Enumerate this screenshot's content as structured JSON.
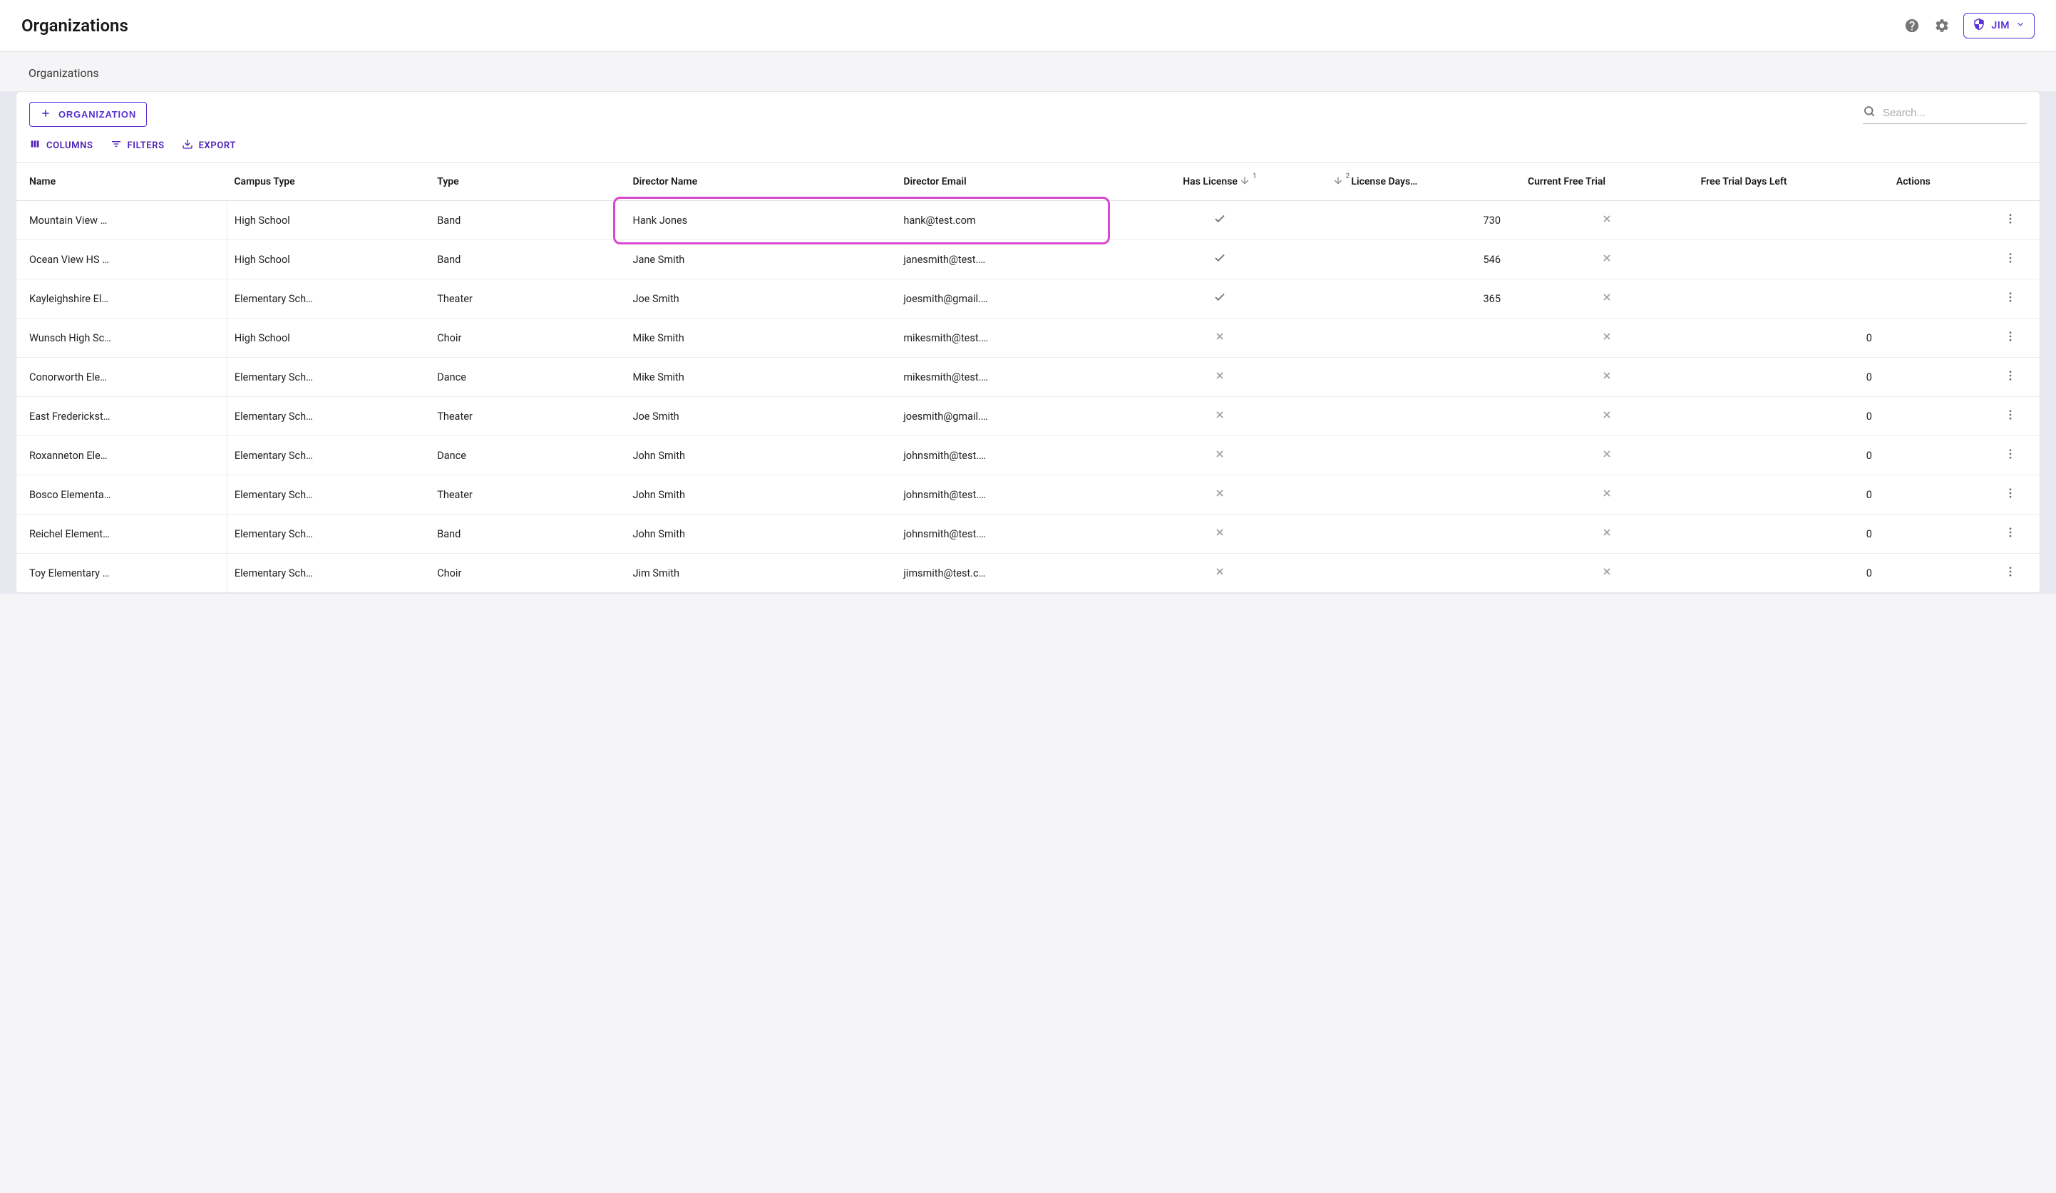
{
  "header": {
    "title": "Organizations",
    "user_label": "JIM"
  },
  "breadcrumb": {
    "text": "Organizations"
  },
  "toolbar": {
    "add_button_label": "ORGANIZATION",
    "columns_label": "COLUMNS",
    "filters_label": "FILTERS",
    "export_label": "EXPORT"
  },
  "search": {
    "placeholder": "Search..."
  },
  "table": {
    "columns": {
      "name": "Name",
      "campus_type": "Campus Type",
      "type": "Type",
      "director_name": "Director Name",
      "director_email": "Director Email",
      "has_license": "Has License",
      "license_days": "License Days…",
      "current_trial": "Current Free Trial",
      "trial_days_left": "Free Trial Days Left",
      "actions": "Actions"
    },
    "sort": {
      "has_license_index": "1",
      "license_days_index": "2"
    },
    "rows": [
      {
        "name": "Mountain View …",
        "campus_type": "High School",
        "type": "Band",
        "director_name": "Hank Jones",
        "director_email": "hank@test.com",
        "has_license": true,
        "license_days": "730",
        "current_trial": false,
        "trial_days_left": ""
      },
      {
        "name": "Ocean View HS …",
        "campus_type": "High School",
        "type": "Band",
        "director_name": "Jane Smith",
        "director_email": "janesmith@test.…",
        "has_license": true,
        "license_days": "546",
        "current_trial": false,
        "trial_days_left": ""
      },
      {
        "name": "Kayleighshire El…",
        "campus_type": "Elementary Sch…",
        "type": "Theater",
        "director_name": "Joe Smith",
        "director_email": "joesmith@gmail.…",
        "has_license": true,
        "license_days": "365",
        "current_trial": false,
        "trial_days_left": ""
      },
      {
        "name": "Wunsch High Sc…",
        "campus_type": "High School",
        "type": "Choir",
        "director_name": "Mike Smith",
        "director_email": "mikesmith@test.…",
        "has_license": false,
        "license_days": "",
        "current_trial": false,
        "trial_days_left": "0"
      },
      {
        "name": "Conorworth Ele…",
        "campus_type": "Elementary Sch…",
        "type": "Dance",
        "director_name": "Mike Smith",
        "director_email": "mikesmith@test.…",
        "has_license": false,
        "license_days": "",
        "current_trial": false,
        "trial_days_left": "0"
      },
      {
        "name": "East Frederickst…",
        "campus_type": "Elementary Sch…",
        "type": "Theater",
        "director_name": "Joe Smith",
        "director_email": "joesmith@gmail.…",
        "has_license": false,
        "license_days": "",
        "current_trial": false,
        "trial_days_left": "0"
      },
      {
        "name": "Roxanneton Ele…",
        "campus_type": "Elementary Sch…",
        "type": "Dance",
        "director_name": "John Smith",
        "director_email": "johnsmith@test.…",
        "has_license": false,
        "license_days": "",
        "current_trial": false,
        "trial_days_left": "0"
      },
      {
        "name": "Bosco Elementa…",
        "campus_type": "Elementary Sch…",
        "type": "Theater",
        "director_name": "John Smith",
        "director_email": "johnsmith@test.…",
        "has_license": false,
        "license_days": "",
        "current_trial": false,
        "trial_days_left": "0"
      },
      {
        "name": "Reichel Element…",
        "campus_type": "Elementary Sch…",
        "type": "Band",
        "director_name": "John Smith",
        "director_email": "johnsmith@test.…",
        "has_license": false,
        "license_days": "",
        "current_trial": false,
        "trial_days_left": "0"
      },
      {
        "name": "Toy Elementary …",
        "campus_type": "Elementary Sch…",
        "type": "Choir",
        "director_name": "Jim Smith",
        "director_email": "jimsmith@test.c…",
        "has_license": false,
        "license_days": "",
        "current_trial": false,
        "trial_days_left": "0"
      }
    ],
    "highlight": {
      "row_index": 0,
      "color": "#d946cf"
    }
  },
  "colors": {
    "primary": "#5a31d4",
    "icon_gray": "#757575",
    "border": "#e0e0e0",
    "bg": "#f5f5f7"
  }
}
